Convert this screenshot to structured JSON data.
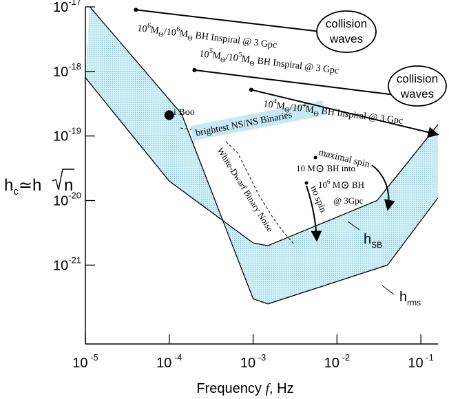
{
  "chart_data": {
    "type": "area",
    "title": "",
    "xlabel": {
      "prefix": "Frequency ",
      "var": "f",
      "suffix": ",  Hz"
    },
    "ylabel": {
      "h": "h",
      "sub": "c",
      "approx": "≃",
      "h2": "h",
      "n": "n"
    },
    "x_scale": "log",
    "y_scale": "log",
    "xlim": [
      1e-05,
      0.16
    ],
    "ylim": [
      6e-23,
      1e-17
    ],
    "x_ticks": [
      {
        "value": 1e-05,
        "base": "10",
        "exp": "-5"
      },
      {
        "value": 0.0001,
        "base": "10",
        "exp": "-4"
      },
      {
        "value": 0.001,
        "base": "10",
        "exp": "-3"
      },
      {
        "value": 0.01,
        "base": "10",
        "exp": "-2"
      },
      {
        "value": 0.1,
        "base": "10",
        "exp": "-1"
      }
    ],
    "y_ticks": [
      {
        "value": 1e-17,
        "base": "10",
        "exp": "-17"
      },
      {
        "value": 1e-18,
        "base": "10",
        "exp": "-18"
      },
      {
        "value": 1e-19,
        "base": "10",
        "exp": "-19"
      },
      {
        "value": 1e-20,
        "base": "10",
        "exp": "-20"
      },
      {
        "value": 1e-21,
        "base": "10",
        "exp": "-21"
      }
    ],
    "band": {
      "upper_label": {
        "main": "h",
        "sub": "SB"
      },
      "lower_label": {
        "main": "h",
        "sub": "rms"
      },
      "upper": [
        [
          1e-05,
          8e-19
        ],
        [
          0.0001,
          2e-20
        ],
        [
          0.001,
          2.2e-21
        ],
        [
          0.0015,
          2e-21
        ],
        [
          0.03,
          1e-20
        ],
        [
          0.16,
          1.5e-19
        ]
      ],
      "lower": [
        [
          1.13e-05,
          1e-17
        ],
        [
          0.00014,
          2.2e-19
        ],
        [
          0.001,
          3e-22
        ],
        [
          0.0015,
          2.5e-22
        ],
        [
          0.04,
          1e-21
        ],
        [
          0.16,
          1.1e-20
        ]
      ]
    },
    "inspirals": [
      {
        "label": "10⁶M⊙/10⁶M⊙ BH Inspiral @ 3 Gpc",
        "start": [
          4e-05,
          9e-18
        ],
        "end": [
          0.028,
          3.3e-18
        ],
        "collision": "collision waves"
      },
      {
        "label": "10⁵M⊙/10⁵M⊙ BH Inspiral @ 3 Gpc",
        "start": [
          0.0002,
          1.05e-18
        ],
        "end": [
          0.11,
          3.8e-19
        ],
        "collision": "collision waves"
      },
      {
        "label": "10⁴M⊙/10⁴M⊙ BH Inspiral @ 3 Gpc",
        "start": [
          0.00095,
          5.2e-19
        ],
        "end": [
          0.16,
          1.05e-19
        ],
        "collision": ""
      }
    ],
    "sources": [
      {
        "label": "i Boo",
        "x": 0.0001,
        "y": 2.1e-19
      },
      {
        "label": "brightest NS/NS Binaries"
      },
      {
        "label": "White-Dwarf Binary Noise"
      }
    ],
    "capture": {
      "text_line1": "10 M⊙ BH into",
      "text_line2": "10⁶ M⊙ BH",
      "text_line3": "@ 3Gpc",
      "maximal_spin": "maximal spin",
      "no_spin": "no spin",
      "max_spin_start": [
        0.0045,
        6e-20
      ],
      "no_spin_start": [
        0.0037,
        2.5e-20
      ]
    }
  }
}
